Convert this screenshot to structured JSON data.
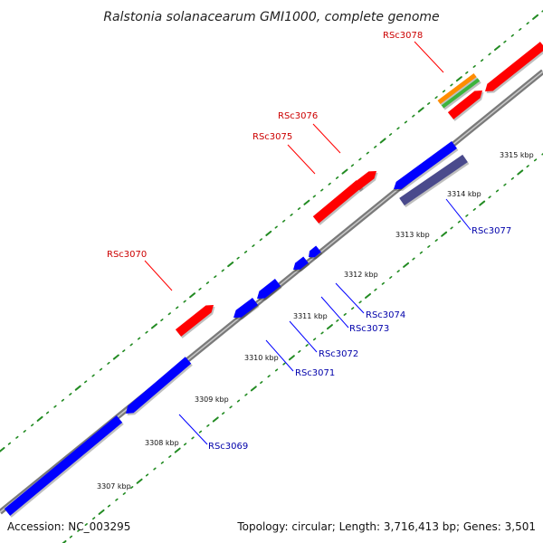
{
  "title": "Ralstonia solanacearum GMI1000, complete genome",
  "footer": {
    "accession": "Accession: NC_003295",
    "topology": "Topology: circular; Length: 3,716,413 bp; Genes: 3,501"
  },
  "colors": {
    "backbone": "#808080",
    "forward_gene": "#ff0000",
    "reverse_gene": "#0000ff",
    "pseudo_gene": "#4a4a8c",
    "orange_feature": "#ff8c00",
    "green_feature": "#3cb43c",
    "tick_mark": "#228b22",
    "forward_label": "#cc0000",
    "reverse_label": "#0000aa"
  },
  "scale": {
    "ticks": [
      {
        "label": "3307 kbp"
      },
      {
        "label": "3308 kbp"
      },
      {
        "label": "3309 kbp"
      },
      {
        "label": "3310 kbp"
      },
      {
        "label": "3311 kbp"
      },
      {
        "label": "3312 kbp"
      },
      {
        "label": "3313 kbp"
      },
      {
        "label": "3314 kbp"
      },
      {
        "label": "3315 kbp"
      }
    ]
  },
  "genes": {
    "forward": [
      {
        "label": "RSc3070"
      },
      {
        "label": "RSc3075"
      },
      {
        "label": "RSc3076"
      },
      {
        "label": "RSc3078"
      }
    ],
    "reverse": [
      {
        "label": "RSc3069"
      },
      {
        "label": "RSc3071"
      },
      {
        "label": "RSc3072"
      },
      {
        "label": "RSc3073"
      },
      {
        "label": "RSc3074"
      },
      {
        "label": "RSc3077"
      }
    ]
  }
}
